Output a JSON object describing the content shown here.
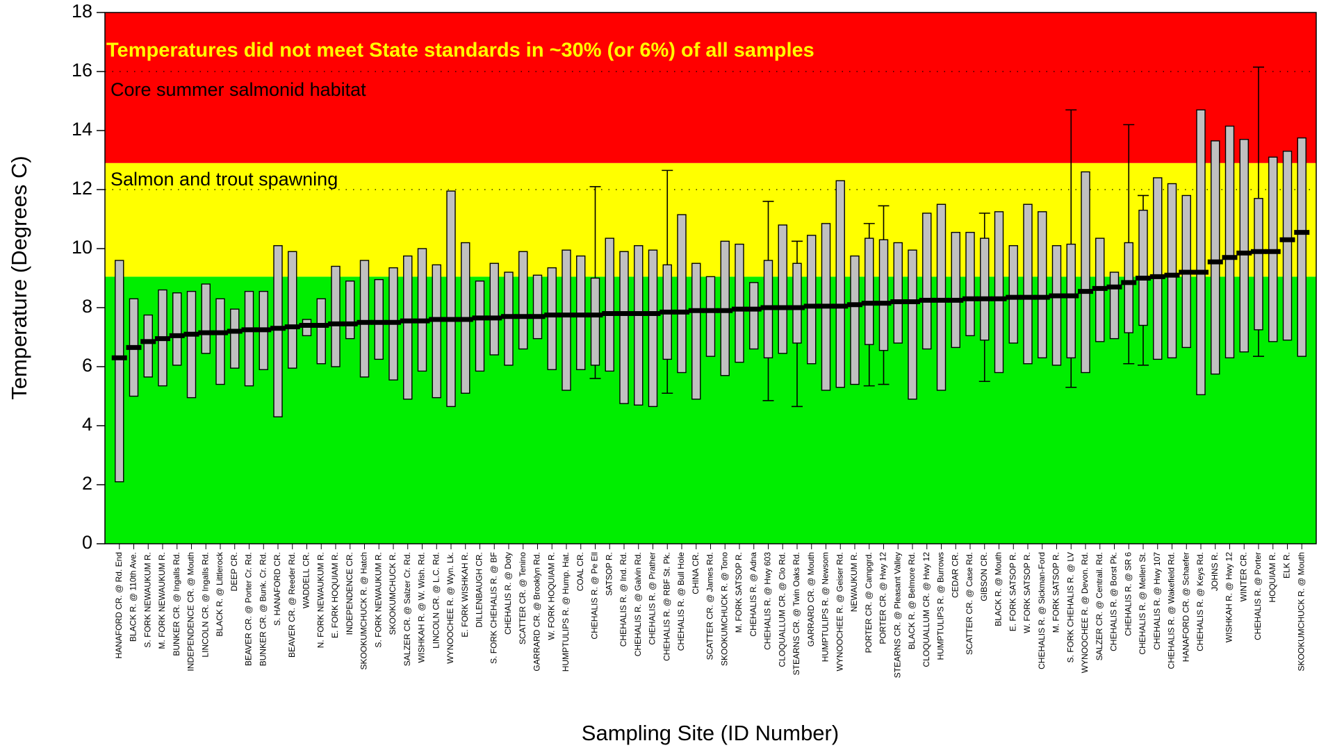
{
  "chart_data": {
    "type": "boxplot",
    "annotation": "Temperatures did not meet State standards in ~30% (or 6%) of all samples",
    "xlabel": "Sampling Site (ID Number)",
    "ylabel": "Temperature (Degrees C)",
    "ylim": [
      0,
      18
    ],
    "yticks": [
      0,
      2,
      4,
      6,
      8,
      10,
      12,
      14,
      16,
      18
    ],
    "bands": [
      {
        "from": 0,
        "to": 9.05,
        "color": "#00ee00"
      },
      {
        "from": 9.05,
        "to": 12.9,
        "color": "#ffff00",
        "label": "Salmon and trout spawning"
      },
      {
        "from": 12.9,
        "to": 18,
        "color": "#ff0000",
        "label": "Core summer salmonid habitat"
      }
    ],
    "ref_lines": [
      12,
      16
    ],
    "box_color": "#c0c0c0",
    "categories": [
      "HANAFORD CR. @ Rd. End",
      "BLACK R. @ 110th Ave.",
      "S. FORK NEWAUKUM R.",
      "M. FORK NEWAUKUM R.",
      "BUNKER CR. @ Ingalls Rd.",
      "INDEPENDENCE CR. @ Mouth",
      "LINCOLN CR. @ Ingalls Rd.",
      "BLACK R. @ Littlerock",
      "DEEP CR.",
      "BEAVER CR. @ Porter Cr. Rd.",
      "BUNKER CR. @ Bunk. Cr. Rd.",
      "S. HANAFORD CR.",
      "BEAVER CR. @ Reeder Rd.",
      "WADDELL CR.",
      "N. FORK NEWAUKUM R.",
      "E. FORK HOQUIAM R.",
      "INDEPENDENCE CR.",
      "SKOOKUMCHUCK R. @ Hatch",
      "S. FORK NEWAUKUM R.",
      "SKOOKUMCHUCK R.",
      "SALZER CR. @ Salzer Cr. Rd.",
      "WISHKAH R. @ W. Wish. Rd.",
      "LINCOLN CR. @ L.C. Rd.",
      "WYNOOCHEE R. @ Wyn. Lk.",
      "E. FORK WISHKAH R.",
      "DILLENBAUGH CR.",
      "S. FORK CHEHALIS R. @ BF",
      "CHEHALIS R. @ Doty",
      "SCATTER CR. @ Tenino",
      "GARRARD CR. @ Brooklyn Rd.",
      "W. FORK HOQUIAM R.",
      "HUMPTULIPS R. @ Hump. Hat.",
      "COAL CR.",
      "CHEHALIS R. @ Pe Ell",
      "SATSOP R.",
      "CHEHALIS R. @ Ind. Rd.",
      "CHEHALIS R. @ Galvin Rd.",
      "CHEHALIS R. @ Prather",
      "CHEHALIS R. @ RBF St. Pk.",
      "CHEHALIS R. @ Bull Hole",
      "CHINA CR.",
      "SCATTER CR. @ James Rd.",
      "SKOOKUMCHUCK R. @ Tono",
      "M. FORK SATSOP R.",
      "CHEHALIS R. @ Adna",
      "CHEHALIS R. @ Hwy 603",
      "CLOQUALLUM CR. @ Clo Rd.",
      "STEARNS CR. @ Twin Oaks Rd.",
      "GARRARD CR. @ Mouth",
      "HUMPTULIPS R. @ Newsom",
      "WYNOOCHEE R. @ Geiser Rd.",
      "NEWAUKUM R.",
      "PORTER CR. @ Campgrd.",
      "PORTER CR. @ Hwy 12",
      "STEARNS CR. @ Pleasant Valley",
      "BLACK R. @ Belmore Rd.",
      "CLOQUALLUM CR. @ Hwy 12",
      "HUMPTULIPS R. @ Burrows",
      "CEDAR CR.",
      "SCATTER CR. @ Case Rd.",
      "GIBSON CR.",
      "BLACK R. @ Mouth",
      "E. FORK SATSOP R.",
      "W. FORK SATSOP R.",
      "CHEHALIS R. @ Sickman-Ford",
      "M. FORK SATSOP R.",
      "S. FORK CHEHALIS R. @ LV",
      "WYNOOCHEE R. @ Devon. Rd.",
      "SALZER CR. @ Centrail. Rd.",
      "CHEHALIS R. @ Borst Pk.",
      "CHEHALIS R. @ SR 6",
      "CHEHALIS R. @ Mellen St.",
      "CHEHALIS R. @ Hwy 107",
      "CHEHALIS R. @ Wakefield Rd.",
      "HANAFORD CR. @ Schaefer",
      "CHEHALIS R. @ Keys Rd.",
      "JOHNS R.",
      "WISHKAH R. @ Hwy 12",
      "WINTER CR.",
      "CHEHALIS R. @ Porter",
      "HOQUIAM R.",
      "ELK R.",
      "SKOOKUMCHUCK R. @ Mouth"
    ],
    "low": [
      2.1,
      5.0,
      5.65,
      5.35,
      6.05,
      4.95,
      6.45,
      5.4,
      5.95,
      5.35,
      5.9,
      4.3,
      5.95,
      7.05,
      6.1,
      6.0,
      6.95,
      5.65,
      6.25,
      5.55,
      4.9,
      5.85,
      4.95,
      4.65,
      5.1,
      5.85,
      6.4,
      6.05,
      6.6,
      6.95,
      5.9,
      5.2,
      5.9,
      6.05,
      5.85,
      4.75,
      4.7,
      4.65,
      6.25,
      5.8,
      4.9,
      6.35,
      5.7,
      6.15,
      6.6,
      6.3,
      6.45,
      6.8,
      6.1,
      5.2,
      5.3,
      5.4,
      6.75,
      6.55,
      6.8,
      4.9,
      6.6,
      5.2,
      6.65,
      7.05,
      6.9,
      5.8,
      6.8,
      6.1,
      6.3,
      6.05,
      6.3,
      5.8,
      6.85,
      6.95,
      7.15,
      7.4,
      6.25,
      6.3,
      6.65,
      5.05,
      5.75,
      6.3,
      6.5,
      7.25,
      6.85,
      6.9,
      6.35
    ],
    "high": [
      9.6,
      8.3,
      7.75,
      8.6,
      8.5,
      8.55,
      8.8,
      8.3,
      7.95,
      8.55,
      8.55,
      10.1,
      9.9,
      7.6,
      8.3,
      9.4,
      8.9,
      9.6,
      8.95,
      9.35,
      9.75,
      10.0,
      9.45,
      11.95,
      10.2,
      8.9,
      9.5,
      9.2,
      9.9,
      9.1,
      9.35,
      9.95,
      9.75,
      9.0,
      10.35,
      9.9,
      10.1,
      9.95,
      9.45,
      11.15,
      9.5,
      9.05,
      10.25,
      10.15,
      8.85,
      9.6,
      10.8,
      9.5,
      10.45,
      10.85,
      12.3,
      9.75,
      10.35,
      10.3,
      10.2,
      9.95,
      11.2,
      11.5,
      10.55,
      10.55,
      10.35,
      11.25,
      10.1,
      11.5,
      11.25,
      10.1,
      10.15,
      12.6,
      10.35,
      9.2,
      10.2,
      11.3,
      12.4,
      12.2,
      11.8,
      14.7,
      13.65,
      14.15,
      13.7,
      11.7,
      13.1,
      13.3,
      13.75
    ],
    "mean": [
      6.3,
      6.65,
      6.85,
      6.95,
      7.05,
      7.1,
      7.15,
      7.15,
      7.2,
      7.25,
      7.25,
      7.3,
      7.35,
      7.4,
      7.4,
      7.45,
      7.45,
      7.5,
      7.5,
      7.5,
      7.55,
      7.55,
      7.6,
      7.6,
      7.6,
      7.65,
      7.65,
      7.7,
      7.7,
      7.7,
      7.75,
      7.75,
      7.75,
      7.75,
      7.8,
      7.8,
      7.8,
      7.8,
      7.85,
      7.85,
      7.9,
      7.9,
      7.9,
      7.95,
      7.95,
      8.0,
      8.0,
      8.0,
      8.05,
      8.05,
      8.05,
      8.1,
      8.15,
      8.15,
      8.2,
      8.2,
      8.25,
      8.25,
      8.25,
      8.3,
      8.3,
      8.3,
      8.35,
      8.35,
      8.35,
      8.4,
      8.4,
      8.55,
      8.65,
      8.7,
      8.85,
      9.0,
      9.05,
      9.1,
      9.2,
      9.2,
      9.55,
      9.7,
      9.85,
      9.9,
      9.9,
      10.3,
      10.55
    ],
    "whisker_low": [
      null,
      null,
      null,
      null,
      null,
      null,
      null,
      null,
      null,
      null,
      null,
      null,
      null,
      null,
      null,
      null,
      null,
      null,
      null,
      null,
      null,
      null,
      null,
      null,
      null,
      null,
      null,
      null,
      null,
      null,
      null,
      null,
      null,
      5.6,
      null,
      null,
      null,
      null,
      5.1,
      null,
      null,
      null,
      null,
      null,
      null,
      4.85,
      null,
      4.65,
      null,
      null,
      null,
      null,
      5.35,
      5.4,
      null,
      null,
      null,
      null,
      null,
      null,
      5.5,
      null,
      null,
      null,
      null,
      null,
      5.3,
      null,
      null,
      null,
      6.1,
      6.05,
      null,
      null,
      null,
      null,
      null,
      null,
      null,
      6.35,
      null,
      null,
      null
    ],
    "whisker_high": [
      null,
      null,
      null,
      null,
      null,
      null,
      null,
      null,
      null,
      null,
      null,
      null,
      null,
      null,
      null,
      null,
      null,
      null,
      null,
      null,
      null,
      null,
      null,
      null,
      null,
      null,
      null,
      null,
      null,
      null,
      null,
      null,
      null,
      12.1,
      null,
      null,
      null,
      null,
      12.65,
      null,
      null,
      null,
      null,
      null,
      null,
      11.6,
      null,
      10.25,
      null,
      null,
      null,
      null,
      10.85,
      11.45,
      null,
      null,
      null,
      null,
      null,
      null,
      11.2,
      null,
      null,
      null,
      null,
      null,
      14.7,
      null,
      null,
      null,
      14.2,
      11.8,
      null,
      null,
      null,
      null,
      null,
      null,
      null,
      16.15,
      null,
      null,
      null
    ]
  }
}
